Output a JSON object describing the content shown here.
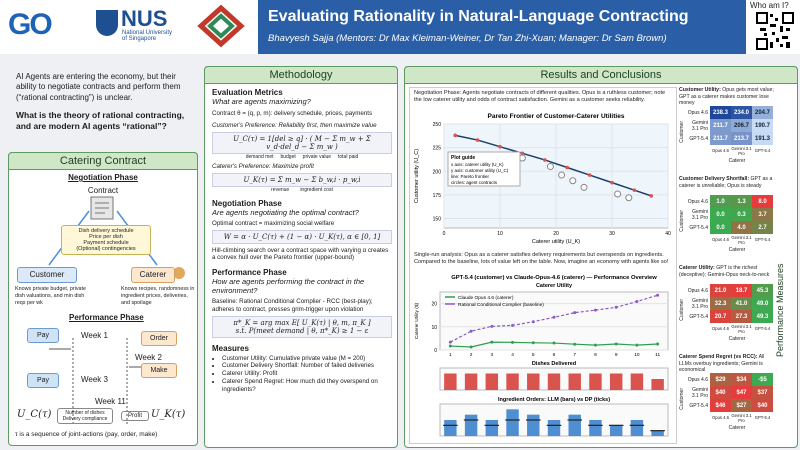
{
  "header": {
    "logo_go": "GO",
    "logo_nus": "NUS",
    "logo_nus_sub": "National University\nof Singapore",
    "title": "Evaluating Rationality in Natural-Language Contracting",
    "authors": "Bhavyesh Sajja (Mentors: Dr Max Kleiman-Weiner, Dr Tan Zhi-Xuan; Manager: Dr Sam Brown)",
    "who": "Who am I?"
  },
  "intro": {
    "text": "AI Agents are entering the economy, but their ability to negotiate contracts and perform them (“rational contracting”) is unclear.",
    "question": "What is the theory of rational contracting, and are modern AI agents “rational”?"
  },
  "catering": {
    "title": "Catering Contract",
    "negotiation": "Negotiation Phase",
    "contract": "Contract",
    "contract_terms": "Dish delivery schedule\nPrice per dish\nPayment schedule\n(Optional) contingencies",
    "customer": "Customer",
    "caterer": "Caterer",
    "customer_knows": "Knows private budget, private dish valuations, and min dish reqs per wk",
    "caterer_knows": "Knows recipes, randomness in ingredient prices, deliveries, and spoilage",
    "performance": "Performance Phase",
    "pay": "Pay",
    "order": "Order",
    "make": "Make",
    "weeks": [
      "Week 1",
      "Week 2",
      "Week 3",
      "Week 11"
    ],
    "uc": "U_C(τ)",
    "uc_terms": "Number of dishes\nDelivery compliance",
    "profit": "Profit",
    "uk": "U_K(τ)",
    "footnote": "τ is a sequence of joint-actions (pay, order, make)"
  },
  "methodology": {
    "title": "Methodology",
    "eval_title": "Evaluation Metrics",
    "eval_q": "What are agents maximizing?",
    "contract": "Contract θ = (q, p, m): delivery schedule, prices, payments",
    "cust_pref": "Customer's Preference: Reliability first, then maximize value",
    "cust_formula": "U_C(τ) = 1[del ≥ q] · ( M − Σ m_w + Σ v_d·del_d − Σ m_w )",
    "cust_formula_sub": "demand met     budget     private value     total paid",
    "cat_pref": "Caterer's Preference: Maximize profit",
    "cat_formula": "U_K(τ) = Σ m_w − Σ b_w,i · p_w,i",
    "cat_formula_sub": "revenue        ingredient cost",
    "neg_title": "Negotiation Phase",
    "neg_q": "Are agents negotiating the optimal contract?",
    "optimal": "Optimal contract = maximizing social welfare",
    "welfare": "W = α · U_C(τ) + (1 − α) · U_K(τ),  α ∈ [0, 1]",
    "hill": "Hill-climbing search over a contract space with varying α creates a convex hull over the Pareto frontier (upper-bound)",
    "perf_title": "Performance Phase",
    "perf_q": "How are agents performing the contract in the environment?",
    "baseline": "Baseline: Rational Conditional Complier - RCC (best-play); adheres to contract, presses grim-trigger upon violation",
    "policy": "π*_K = arg max E[ U_K(τ) | θ, m, π_K ]\ns.t.  P(meet demand | θ, π*_K) ≥ 1 − ε",
    "measures_title": "Measures",
    "measures": [
      "Customer Utility: Cumulative private value (M = 200)",
      "Customer Delivery Shortfall: Number of failed deliveries",
      "Caterer Utility: Profit",
      "Caterer Spend Regret: How much did they overspend on ingredients?"
    ]
  },
  "results": {
    "title": "Results and Conclusions",
    "neg_text": "Negotiation Phase: Agents negotiate contracts of different qualities. Opus is a ruthless customer; note the low caterer utility and odds of contract satisfaction. Gemini as a customer seeks reliability.",
    "pareto": {
      "type": "scatter",
      "title": "Pareto Frontier of Customer-Caterer Utilities",
      "x_label": "Caterer utility (U_K)",
      "y_label": "Customer utility (U_C)",
      "guide_title": "Plot guide",
      "guide": [
        "x axis: caterer utility (U_K)",
        "y axis: customer utility (U_C)",
        "line: Pareto frontier",
        "circles: agent contracts"
      ],
      "xlim": [
        0,
        40
      ],
      "ylim": [
        140,
        250
      ],
      "xticks": [
        0,
        10,
        20,
        30,
        40
      ],
      "yticks": [
        150,
        175,
        200,
        225,
        250
      ],
      "frontier": {
        "color": "#1f3d6b",
        "x": [
          2,
          6,
          10,
          14,
          18,
          22,
          26,
          30,
          34,
          37
        ],
        "y": [
          238,
          233,
          226,
          219,
          212,
          204,
          196,
          188,
          180,
          174
        ]
      },
      "points": {
        "color": "#888888",
        "x": [
          14,
          19,
          21,
          23,
          25,
          31,
          33
        ],
        "y": [
          214,
          205,
          196,
          190,
          183,
          176,
          172
        ]
      }
    },
    "run_text": "Single-run analysis: Opus as a caterer satisfies delivery requirements but overspends on ingredients. Compared to the baseline, lots of value left on the table. Now, imagine an economy with agents like so!",
    "perf": {
      "type": "line",
      "title": "GPT-5.4 (customer) vs Claude-Opus-4.6 (caterer) — Performance Overview",
      "subtitle": "Caterer Utility",
      "y_label": "Caterer Utility ($)",
      "categories": [
        "1",
        "2",
        "3",
        "4",
        "5",
        "6",
        "7",
        "8",
        "9",
        "10",
        "11"
      ],
      "ylim": [
        0,
        25
      ],
      "yticks": [
        0,
        10,
        20
      ],
      "series": [
        {
          "name": "Claude Opus 4.6 (caterer)",
          "color": "#2e9e4f",
          "values": [
            1.7,
            1.3,
            3.4,
            3.3,
            3.1,
            3.0,
            2.5,
            2.1,
            2.6,
            2.1,
            2.6
          ]
        },
        {
          "name": "Rational Conditional Complier (baseline)",
          "color": "#8a5cc2",
          "values": [
            3.4,
            8.1,
            10.2,
            10.6,
            12.2,
            14.1,
            16.1,
            17.2,
            18.4,
            20.9,
            23.6
          ]
        }
      ],
      "dishes_title": "Dishes Delivered",
      "dishes_color": "#d9534f",
      "dishes": [
        3,
        3,
        3,
        3,
        3,
        3,
        3,
        3,
        3,
        3,
        2
      ],
      "dishes_ylim": [
        0,
        4
      ],
      "orders_title": "Ingredient Orders: LLM (bars) vs DP (ticks)",
      "orders_color": "#4f8fd1",
      "orders": [
        3,
        4,
        3,
        5,
        4,
        3,
        4,
        3,
        2,
        3,
        1
      ],
      "orders_dp": [
        2,
        3,
        2,
        3,
        3,
        2,
        3,
        2,
        2,
        2,
        1
      ],
      "orders_ylim": [
        0,
        6
      ]
    },
    "side_label": "Performance Measures",
    "row_axis": "Customer",
    "col_axis": "Caterer",
    "models": [
      "Opus 4.6",
      "Gemini 3.1 Pro",
      "GPT-5.4"
    ],
    "heatmaps": [
      {
        "title": "Customer Utility:",
        "desc": "Opus gets most value; GPT as a caterer makes customer lose money",
        "cmap": "blue",
        "values": [
          [
            238.3,
            234.0,
            204.7
          ],
          [
            211.7,
            206.7,
            190.7
          ],
          [
            211.7,
            213.7,
            191.3
          ]
        ],
        "value_labels": [
          [
            "238.3",
            "234.0",
            "204.7"
          ],
          [
            "211.7",
            "206.7",
            "190.7"
          ],
          [
            "211.7",
            "213.7",
            "191.3"
          ]
        ]
      },
      {
        "title": "Customer Delivery Shortfall:",
        "desc": "GPT as a caterer is unreliable; Opus is steady",
        "cmap": "green-red",
        "values": [
          [
            1.0,
            1.3,
            8.0
          ],
          [
            0.0,
            0.3,
            3.7
          ],
          [
            0.0,
            4.0,
            2.7
          ]
        ],
        "value_labels": [
          [
            "1.0",
            "1.3",
            "8.0"
          ],
          [
            "0.0",
            "0.3",
            "3.7"
          ],
          [
            "0.0",
            "4.0",
            "2.7"
          ]
        ]
      },
      {
        "title": "Caterer Utility:",
        "desc": "GPT is the richest (deceptive); Gemini-Opus neck-to-neck",
        "cmap": "red-green",
        "values": [
          [
            21.0,
            18.7,
            45.3
          ],
          [
            32.3,
            41.0,
            49.0
          ],
          [
            20.7,
            27.3,
            49.3
          ]
        ],
        "value_labels": [
          [
            "21.0",
            "18.7",
            "45.3"
          ],
          [
            "32.3",
            "41.0",
            "49.0"
          ],
          [
            "20.7",
            "27.3",
            "49.3"
          ]
        ]
      },
      {
        "title": "Caterer Spend Regret (vs RCC):",
        "desc": "All LLMs overbuy ingredients; Gemini is economical",
        "cmap": "green-red",
        "values": [
          [
            29,
            34,
            -5
          ],
          [
            40,
            47,
            37
          ],
          [
            46,
            27,
            40
          ]
        ],
        "value_labels": [
          [
            "$29",
            "$34",
            "-$5"
          ],
          [
            "$40",
            "$47",
            "$37"
          ],
          [
            "$46",
            "$27",
            "$40"
          ]
        ]
      }
    ]
  }
}
